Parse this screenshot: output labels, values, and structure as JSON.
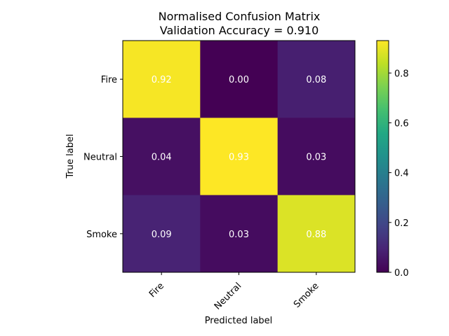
{
  "chart_data": {
    "type": "heatmap",
    "title": "Normalised Confusion Matrix",
    "subtitle": "Validation Accuracy = 0.910",
    "xlabel": "Predicted label",
    "ylabel": "True label",
    "x_categories": [
      "Fire",
      "Neutral",
      "Smoke"
    ],
    "y_categories": [
      "Fire",
      "Neutral",
      "Smoke"
    ],
    "values": [
      [
        0.92,
        0.0,
        0.08
      ],
      [
        0.04,
        0.93,
        0.03
      ],
      [
        0.09,
        0.03,
        0.88
      ]
    ],
    "cell_labels": [
      [
        "0.92",
        "0.00",
        "0.08"
      ],
      [
        "0.04",
        "0.93",
        "0.03"
      ],
      [
        "0.09",
        "0.03",
        "0.88"
      ]
    ],
    "colormap": "viridis",
    "colorbar_range": [
      0.0,
      0.93
    ],
    "colorbar_ticks": [
      0.0,
      0.2,
      0.4,
      0.6,
      0.8
    ],
    "colorbar_tick_labels": [
      "0.0",
      "0.2",
      "0.4",
      "0.6",
      "0.8"
    ],
    "text_color": "#ffffff",
    "grid": false
  }
}
